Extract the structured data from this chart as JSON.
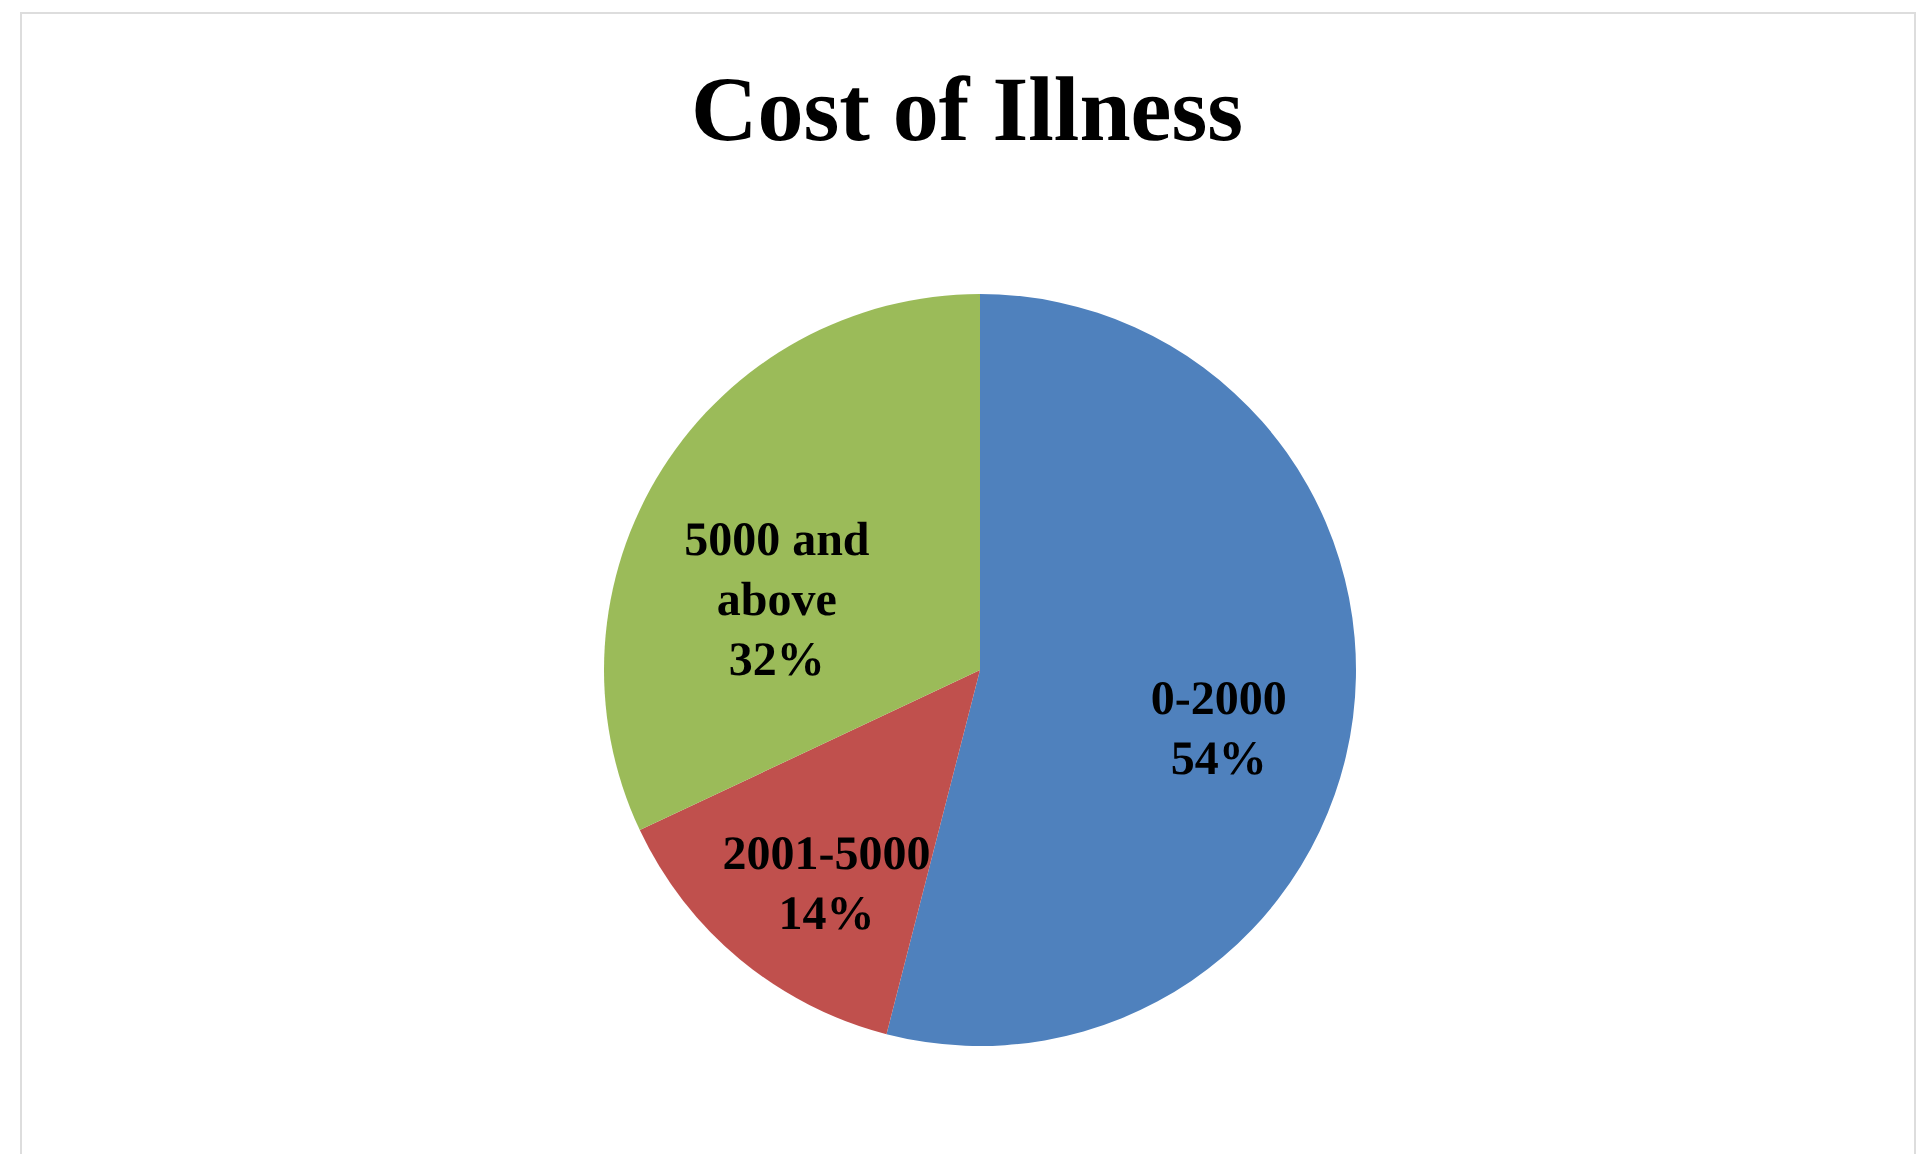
{
  "chart_data": {
    "type": "pie",
    "title": "Cost of Illness",
    "categories": [
      "0-2000",
      "2001-5000",
      "5000 and above"
    ],
    "values": [
      54,
      14,
      32
    ],
    "colors": [
      "#4f81bd",
      "#c0504d",
      "#9bbb59"
    ],
    "value_labels": [
      "54%",
      "14%",
      "32%"
    ]
  }
}
